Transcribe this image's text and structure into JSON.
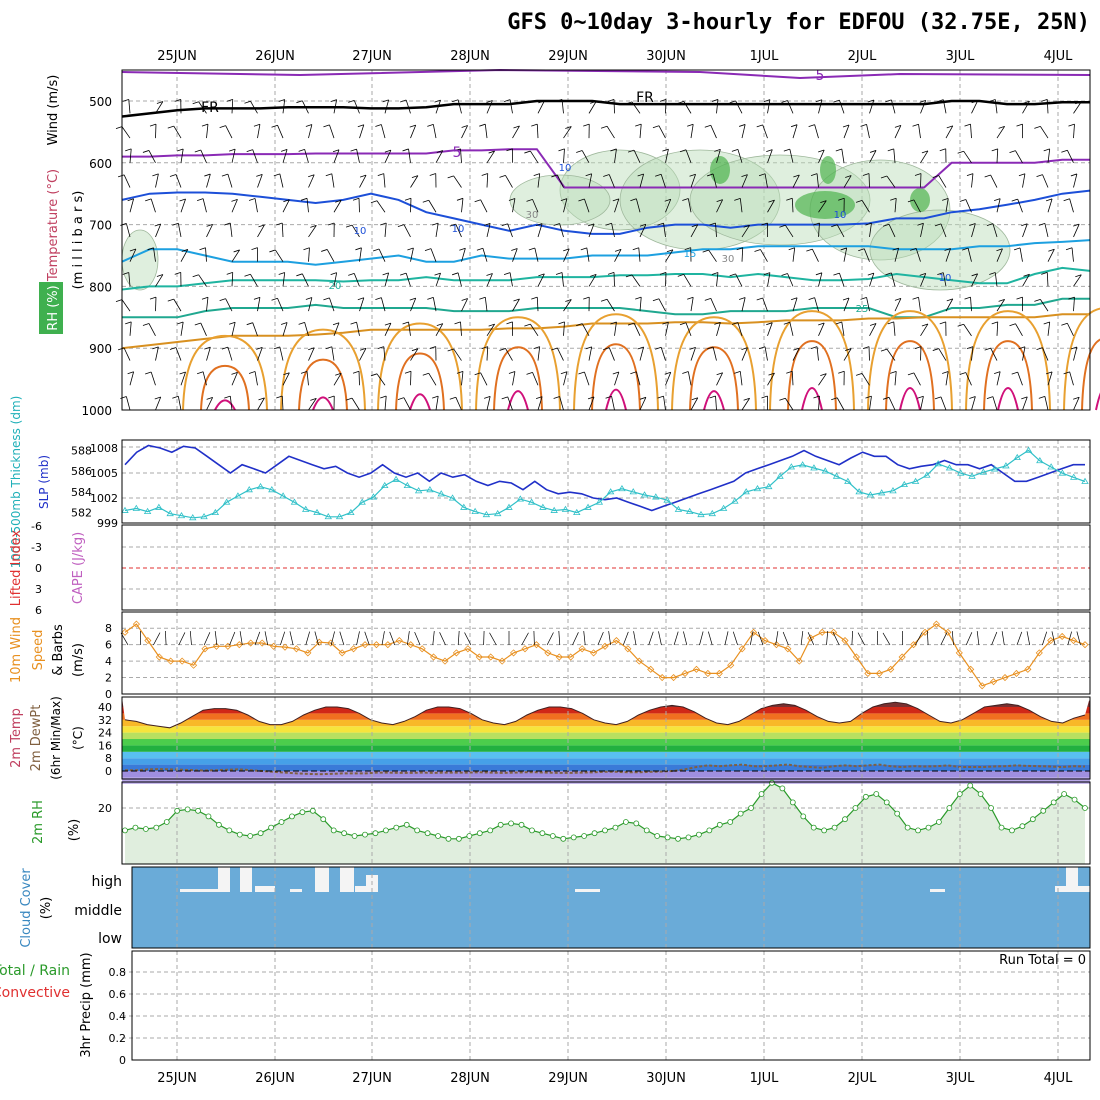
{
  "title": "GFS 0~10day 3-hourly for EDFOU (32.75E, 25N)",
  "dates": [
    "25JUN",
    "26JUN",
    "27JUN",
    "28JUN",
    "29JUN",
    "30JUN",
    "1JUL",
    "2JUL",
    "3JUL",
    "4JUL"
  ],
  "chart_data": [
    {
      "type": "heatmap",
      "name": "upper-air cross section",
      "ylabel": "(m i l l i b a r s)",
      "side_labels": [
        "Wind (m/s)",
        "Temperature (°C)",
        "RH (%)"
      ],
      "yticks": [
        500,
        600,
        700,
        800,
        900,
        1000
      ],
      "ylim": [
        1000,
        450
      ],
      "contour_labels": [
        "FR",
        "FR",
        "5",
        "5",
        "10",
        "10",
        "15",
        "20",
        "25",
        "10",
        "30",
        "30",
        "10",
        "10"
      ],
      "isotherm_levels_mb": {
        "FR": [
          525,
          520,
          515,
          512,
          512,
          512,
          510,
          510,
          510,
          512,
          512,
          510,
          505,
          505,
          505,
          500,
          500,
          500,
          505,
          505,
          505,
          505,
          505,
          505,
          505,
          505,
          505,
          505,
          505,
          505,
          500,
          500,
          505,
          505,
          502,
          502
        ],
        "5": [
          590,
          590,
          588,
          588,
          586,
          586,
          586,
          585,
          585,
          585,
          585,
          585,
          580,
          580,
          578,
          578,
          640,
          640,
          640,
          640,
          640,
          640,
          640,
          640,
          640,
          640,
          640,
          640,
          640,
          640,
          600,
          600,
          600,
          600,
          595,
          595
        ],
        "10": [
          660,
          650,
          648,
          648,
          650,
          655,
          660,
          665,
          660,
          650,
          660,
          680,
          690,
          700,
          710,
          700,
          710,
          715,
          715,
          705,
          700,
          700,
          705,
          700,
          700,
          700,
          700,
          698,
          690,
          690,
          680,
          675,
          668,
          660,
          650,
          645
        ],
        "15": [
          760,
          740,
          740,
          750,
          760,
          760,
          760,
          765,
          760,
          755,
          750,
          760,
          760,
          750,
          755,
          755,
          755,
          750,
          750,
          750,
          745,
          740,
          740,
          735,
          735,
          735,
          735,
          735,
          740,
          740,
          740,
          735,
          735,
          730,
          728,
          725
        ],
        "20": [
          805,
          800,
          800,
          795,
          790,
          790,
          790,
          790,
          792,
          790,
          790,
          785,
          790,
          790,
          790,
          785,
          785,
          785,
          782,
          782,
          780,
          780,
          785,
          780,
          785,
          790,
          790,
          788,
          780,
          785,
          790,
          795,
          795,
          780,
          770,
          775
        ],
        "25": [
          850,
          850,
          850,
          840,
          835,
          835,
          835,
          830,
          835,
          835,
          835,
          835,
          840,
          840,
          840,
          835,
          835,
          835,
          835,
          840,
          845,
          845,
          840,
          840,
          840,
          835,
          835,
          835,
          850,
          850,
          835,
          835,
          830,
          830,
          820,
          820
        ],
        "30": [
          900,
          895,
          890,
          885,
          880,
          880,
          880,
          878,
          875,
          870,
          870,
          870,
          870,
          870,
          868,
          868,
          865,
          860,
          860,
          860,
          858,
          858,
          860,
          858,
          855,
          855,
          855,
          852,
          852,
          850,
          850,
          850,
          850,
          850,
          845,
          845
        ]
      },
      "warm_core_peaks_mb": [
        880,
        870,
        860,
        850,
        845,
        850,
        840,
        840,
        840,
        835
      ]
    },
    {
      "type": "line",
      "name": "thickness and SLP",
      "ylabel_left": "1000-500mb Thickness (dm)",
      "ylabel_right": "SLP (mb)",
      "ylim_left": [
        581,
        589
      ],
      "ylim_right": [
        999,
        1009
      ],
      "yticks_left": [
        582,
        584,
        586,
        588
      ],
      "yticks_right": [
        999,
        1002,
        1005,
        1008
      ],
      "series": [
        {
          "name": "SLP",
          "values": [
            1006,
            1007.5,
            1008.3,
            1008,
            1007.5,
            1008.2,
            1008,
            1007,
            1006,
            1005,
            1006,
            1005.5,
            1005,
            1006,
            1007,
            1006.5,
            1006,
            1005.5,
            1005.8,
            1005,
            1004.5,
            1005,
            1006,
            1005,
            1004.5,
            1005,
            1004,
            1005,
            1004.5,
            1004.8,
            1004,
            1003.5,
            1004,
            1003.8,
            1003,
            1004,
            1003,
            1002.5,
            1002.7,
            1002.5,
            1002,
            1001.8,
            1002,
            1001.5,
            1001,
            1000.5,
            1001,
            1001.5,
            1002,
            1002.5,
            1003,
            1003.5,
            1004,
            1005,
            1005.5,
            1006,
            1006.5,
            1007,
            1007.7,
            1007,
            1006.5,
            1006,
            1006.8,
            1007.5,
            1007,
            1007,
            1006,
            1005.5,
            1005.8,
            1006,
            1006.5,
            1006,
            1006,
            1005.5,
            1006,
            1005,
            1004,
            1004,
            1004.5,
            1005,
            1005.5,
            1006,
            1006
          ]
        },
        {
          "name": "Thickness",
          "values": [
            582.2,
            582.4,
            582.1,
            582.5,
            581.9,
            581.7,
            581.5,
            581.6,
            582.0,
            583.0,
            583.6,
            584.2,
            584.5,
            584.2,
            583.6,
            583.0,
            582.3,
            582.0,
            581.6,
            581.6,
            582.0,
            583.0,
            583.5,
            584.6,
            585.2,
            584.6,
            584.1,
            584.2,
            583.8,
            583.4,
            582.5,
            582.1,
            581.8,
            581.9,
            582.5,
            583.3,
            583.0,
            582.5,
            582.2,
            582.3,
            582.0,
            582.5,
            583.0,
            584.0,
            584.3,
            584.0,
            583.7,
            583.5,
            583.2,
            582.3,
            582.1,
            581.8,
            581.9,
            582.4,
            583.1,
            584.0,
            584.3,
            584.5,
            585.5,
            586.4,
            586.6,
            586.3,
            586.0,
            585.5,
            585.0,
            584.0,
            583.7,
            583.9,
            584.1,
            584.7,
            585.0,
            585.6,
            586.7,
            586.3,
            585.8,
            585.5,
            585.9,
            586.2,
            586.5,
            587.3,
            588.0,
            587.0,
            586.4,
            585.8,
            585.4,
            585.0
          ]
        }
      ]
    },
    {
      "type": "line",
      "name": "lifted index and CAPE",
      "ylabel_left": "Lifted Index",
      "ylabel_right": "CAPE (J/kg)",
      "ylim": [
        -6,
        6
      ],
      "yticks": [
        -6,
        -3,
        0,
        3,
        6
      ],
      "ytick_labels": [
        "-6",
        "-3",
        "0",
        "3",
        "6"
      ],
      "series": [
        {
          "name": "Lifted Index zero line",
          "values": [
            0,
            0
          ]
        }
      ]
    },
    {
      "type": "line",
      "name": "10m wind",
      "ylabel": "10m Wind Speed (m/s) & Barbs",
      "ylim": [
        0,
        9
      ],
      "yticks": [
        0,
        2,
        4,
        6,
        8
      ],
      "series": [
        {
          "name": "10m wind speed",
          "values": [
            7.5,
            8.5,
            6.5,
            4.5,
            4.0,
            4.0,
            3.5,
            5.5,
            5.8,
            5.8,
            6.0,
            6.2,
            6.2,
            5.8,
            5.7,
            5.5,
            5.0,
            6.3,
            6.2,
            5.0,
            5.5,
            6.0,
            6.0,
            6.0,
            6.5,
            6.0,
            5.5,
            4.5,
            4.0,
            5.0,
            5.5,
            4.5,
            4.5,
            4.0,
            5.0,
            5.5,
            6.0,
            5.0,
            4.5,
            4.5,
            5.5,
            5.0,
            5.8,
            6.5,
            5.5,
            4.0,
            3.0,
            2.0,
            2.0,
            2.5,
            3.0,
            2.5,
            2.5,
            3.5,
            5.5,
            7.5,
            6.5,
            6.0,
            5.5,
            4.0,
            6.8,
            7.5,
            7.5,
            6.5,
            4.5,
            2.5,
            2.5,
            3.0,
            4.5,
            6.0,
            7.5,
            8.5,
            7.5,
            5.0,
            3.0,
            1.0,
            1.5,
            2.0,
            2.5,
            3.0,
            5.0,
            6.5,
            7.0,
            6.5,
            6.0
          ]
        }
      ]
    },
    {
      "type": "area",
      "name": "2m temperature",
      "ylabel": "2m Temp 2m DewPt (6hr Min/Max) (°C)",
      "ylim": [
        -8,
        44
      ],
      "yticks": [
        0,
        8,
        16,
        24,
        32,
        40
      ],
      "color_bands": [
        {
          "from": -8,
          "to": -4,
          "color": "#b8a8e8"
        },
        {
          "from": -4,
          "to": 0,
          "color": "#9f8fe0"
        },
        {
          "from": 0,
          "to": 4,
          "color": "#3a7ad8"
        },
        {
          "from": 4,
          "to": 8,
          "color": "#46a0e8"
        },
        {
          "from": 8,
          "to": 12,
          "color": "#59c0f0"
        },
        {
          "from": 12,
          "to": 16,
          "color": "#22b040"
        },
        {
          "from": 16,
          "to": 20,
          "color": "#4ccd4c"
        },
        {
          "from": 20,
          "to": 24,
          "color": "#b8e060"
        },
        {
          "from": 24,
          "to": 28,
          "color": "#f6e43c"
        },
        {
          "from": 28,
          "to": 32,
          "color": "#f8b828"
        },
        {
          "from": 32,
          "to": 36,
          "color": "#f07020"
        },
        {
          "from": 36,
          "to": 40,
          "color": "#d02818"
        },
        {
          "from": 40,
          "to": 44,
          "color": "#7a3030"
        }
      ],
      "series": [
        {
          "name": "2m temperature",
          "values": [
            32,
            31,
            29,
            28,
            27,
            30,
            34,
            38,
            39,
            39,
            38,
            35,
            31,
            29,
            29,
            31,
            35,
            38,
            40,
            40,
            39,
            36,
            32,
            30,
            29,
            31,
            34,
            38,
            40,
            40,
            39,
            36,
            32,
            30,
            29,
            31,
            35,
            38,
            40,
            40,
            39,
            36,
            32,
            30,
            29,
            31,
            35,
            38,
            40,
            41,
            40,
            37,
            33,
            30,
            29,
            31,
            35,
            39,
            41,
            42,
            41,
            38,
            34,
            31,
            30,
            31,
            36,
            40,
            42,
            43,
            42,
            39,
            35,
            31,
            30,
            32,
            36,
            40,
            41,
            42,
            41,
            38,
            34,
            31,
            30,
            33,
            35
          ]
        },
        {
          "name": "2m dewpoint",
          "values": [
            0.5,
            0.5,
            1.0,
            1.2,
            1.0,
            0.8,
            0.5,
            0.3,
            0.5,
            0.8,
            1.0,
            0.5,
            0.0,
            -0.5,
            -1.0,
            -1.5,
            -1.8,
            -2.0,
            -1.8,
            -1.5,
            -1.5,
            -1.5,
            -1.0,
            -1.0,
            -1.2,
            -1.2,
            -1.0,
            -1.2,
            -1.0,
            -1.0,
            -1.0,
            -0.8,
            -1.0,
            -1.2,
            -1.0,
            -0.8,
            -0.8,
            -1.0,
            -1.2,
            -1.2,
            -1.0,
            -0.8,
            -0.5,
            -0.5,
            -0.8,
            -0.8,
            -0.5,
            -0.3,
            0.0,
            1.0,
            2.5,
            3.5,
            3.0,
            3.5,
            4.0,
            3.0,
            3.0,
            3.5,
            4.0,
            3.0,
            2.5,
            2.0,
            3.0,
            3.5,
            3.0,
            3.5,
            4.0,
            3.0,
            2.5,
            3.0,
            2.8,
            3.0,
            3.5,
            2.5,
            2.5,
            2.5,
            2.8,
            3.0,
            3.5,
            3.2,
            3.0,
            2.8,
            2.5,
            3.0,
            2.8
          ]
        }
      ]
    },
    {
      "type": "area",
      "name": "2m relative humidity",
      "ylabel": "2m RH (%)",
      "ylim": [
        0,
        30
      ],
      "yticks": [
        20
      ],
      "series": [
        {
          "name": "2m RH",
          "values": [
            12,
            13,
            12.5,
            13,
            15,
            19,
            19.5,
            19,
            17,
            14,
            12,
            10.5,
            10,
            11,
            13,
            15,
            17,
            18.5,
            19,
            16,
            12,
            11,
            10,
            10.5,
            11,
            12,
            13,
            14,
            12,
            11,
            10,
            9,
            9,
            10,
            11,
            12,
            14,
            14.5,
            14,
            12,
            11,
            10,
            9,
            9.5,
            10,
            11,
            12,
            13,
            15,
            14.5,
            12,
            10,
            9.5,
            9,
            9.5,
            10.5,
            12,
            14,
            15,
            18,
            20,
            25,
            29,
            27,
            22,
            17,
            13,
            12,
            13,
            16,
            20,
            24,
            25,
            22,
            18,
            13,
            12,
            13,
            15,
            20,
            25,
            28,
            25,
            20,
            13,
            12,
            13.5,
            16,
            19,
            22,
            25,
            23,
            20
          ]
        }
      ]
    },
    {
      "type": "bar",
      "name": "cloud cover",
      "ylabel": "Cloud Cover (%)",
      "yticks": [
        "high",
        "middle",
        "low"
      ]
    },
    {
      "type": "bar",
      "name": "precipitation",
      "ylabel": "3hr Precip (mm)",
      "side_labels": [
        "Total / Rain",
        "Convective"
      ],
      "ylim": [
        0,
        1.0
      ],
      "yticks": [
        0,
        0.2,
        0.4,
        0.6,
        0.8
      ],
      "annotation": "Run Total = 0",
      "values": []
    }
  ]
}
